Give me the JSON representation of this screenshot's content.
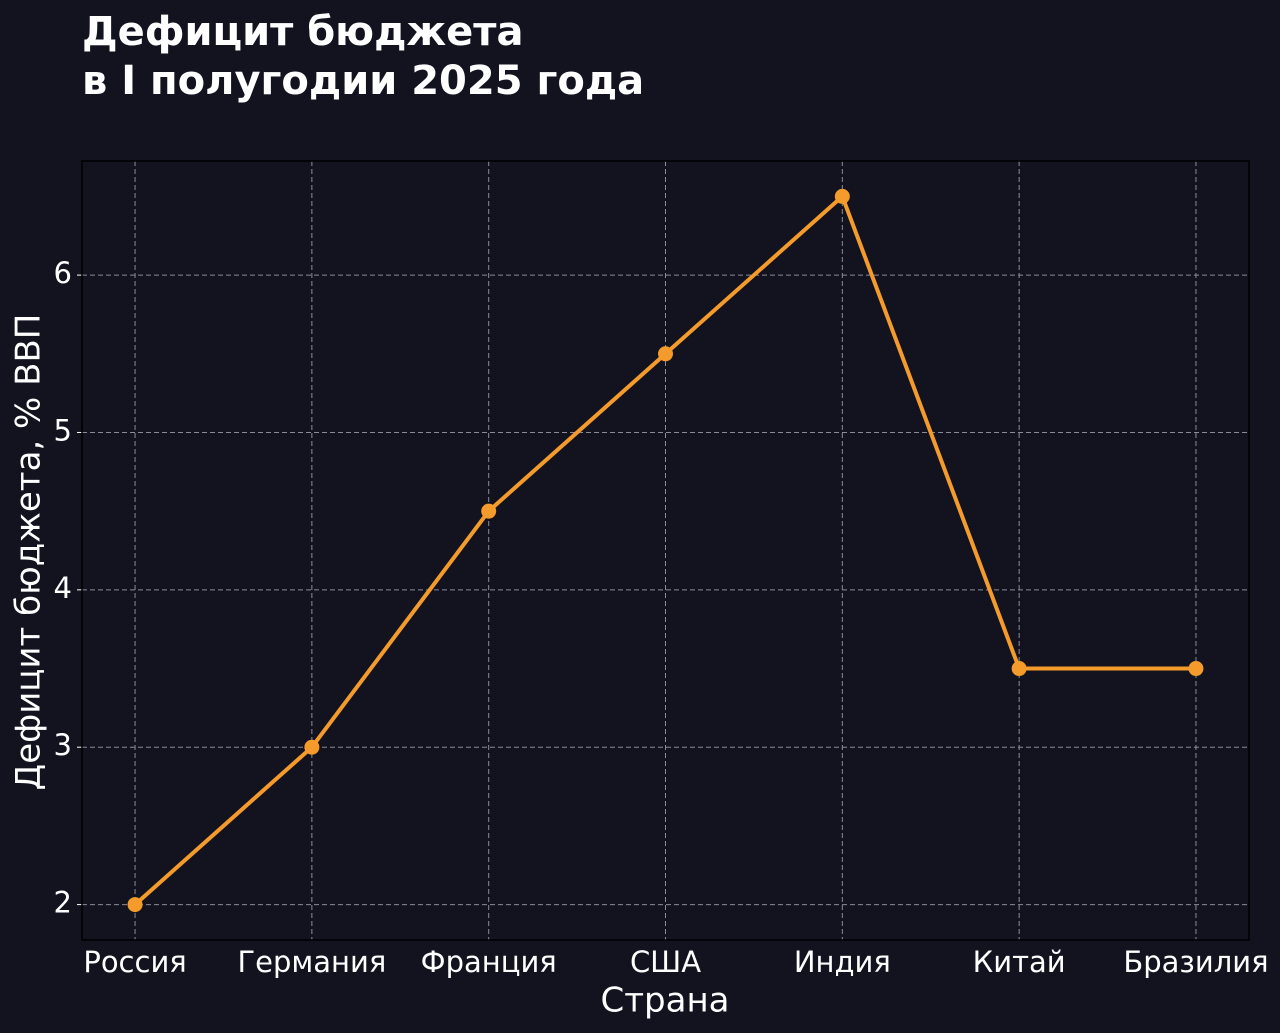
{
  "chart_data": {
    "type": "line",
    "title": [
      "Дефицит бюджета",
      "в I полугодии 2025 года"
    ],
    "xlabel": "Страна",
    "ylabel": "Дефицит бюджета, % ВВП",
    "categories": [
      "Россия",
      "Германия",
      "Франция",
      "США",
      "Индия",
      "Китай",
      "Бразилия"
    ],
    "values": [
      2,
      3,
      4.5,
      5.5,
      6.5,
      3.5,
      3.5
    ],
    "color": "#f59b2b",
    "ylim": [
      1.775,
      6.725
    ],
    "yticks": [
      2,
      3,
      4,
      5,
      6
    ],
    "grid": true
  }
}
